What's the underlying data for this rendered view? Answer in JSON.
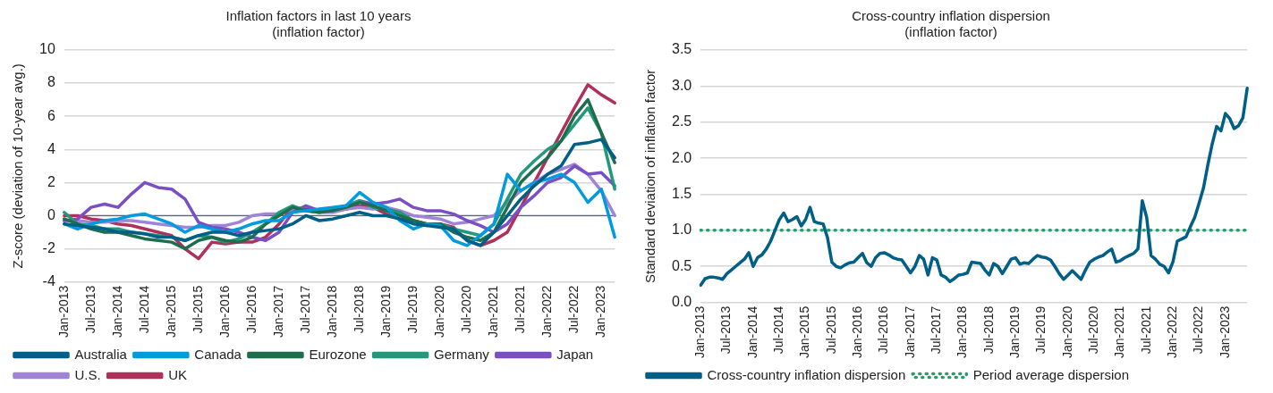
{
  "chart_data": [
    {
      "type": "line",
      "title": "Inflation factors in last 10 years",
      "subtitle": "(inflation factor)",
      "ylabel": "Z-score (deviation of 10-year avg.)",
      "categories": [
        "Jan-2013",
        null,
        "Jul-2013",
        null,
        "Jan-2014",
        null,
        "Jul-2014",
        null,
        "Jan-2015",
        null,
        "Jul-2015",
        null,
        "Jan-2016",
        null,
        "Jul-2016",
        null,
        "Jan-2017",
        null,
        "Jul-2017",
        null,
        "Jan-2018",
        null,
        "Jul-2018",
        null,
        "Jan-2019",
        null,
        "Jul-2019",
        null,
        "Jan-2020",
        null,
        "Jul-2020",
        null,
        "Jan-2021",
        null,
        "Jul-2021",
        null,
        "Jan-2022",
        null,
        "Jul-2022",
        null,
        "Jan-2023",
        null
      ],
      "series": [
        {
          "name": "Australia",
          "color": "#005f87",
          "values": [
            -0.5,
            -0.6,
            -0.7,
            -0.8,
            -1,
            -1,
            -1.1,
            -1.3,
            -1.3,
            -1.5,
            -1.2,
            -1,
            -1,
            -1.2,
            -1,
            -0.9,
            -0.8,
            -0.5,
            0,
            -0.3,
            -0.2,
            0,
            0.2,
            0,
            0,
            -0.2,
            -0.5,
            -0.6,
            -0.7,
            -0.8,
            -1.5,
            -1.8,
            -1,
            0,
            1,
            1.8,
            2.5,
            3,
            4.3,
            4.4,
            4.6,
            3.5
          ]
        },
        {
          "name": "Canada",
          "color": "#009bde",
          "values": [
            -0.5,
            -0.8,
            -0.5,
            -0.3,
            -0.2,
            0,
            0.1,
            -0.2,
            -0.5,
            -1,
            -0.6,
            -0.8,
            -1,
            -0.8,
            -0.5,
            -0.3,
            -0.3,
            0.2,
            0.3,
            0.4,
            0.5,
            0.6,
            1.4,
            0.8,
            0.5,
            -0.3,
            -0.8,
            -0.5,
            -0.6,
            -1.5,
            -1.8,
            -1.2,
            -0.5,
            2.5,
            1.5,
            2,
            2.2,
            2.5,
            2,
            0.8,
            1.6,
            -1.3
          ]
        },
        {
          "name": "Eurozone",
          "color": "#1e6e4e",
          "values": [
            -0.2,
            -0.5,
            -0.8,
            -1,
            -1,
            -1.2,
            -1.4,
            -1.5,
            -1.6,
            -2,
            -1.5,
            -1.3,
            -1.5,
            -1.6,
            -1.3,
            -0.5,
            0,
            0.5,
            0.3,
            0.2,
            0.3,
            0.5,
            0.8,
            0.6,
            0.3,
            0,
            -0.3,
            -0.5,
            -0.5,
            -1,
            -1.3,
            -1.5,
            -1,
            0.5,
            2,
            2.8,
            3.5,
            4.5,
            6,
            7,
            5,
            3.2
          ]
        },
        {
          "name": "Germany",
          "color": "#22997a",
          "values": [
            0.2,
            -0.5,
            -0.6,
            -0.8,
            -0.8,
            -1,
            -1.1,
            -1.2,
            -1.3,
            -1.5,
            -1.2,
            -1.3,
            -1.6,
            -1.4,
            -1,
            -0.5,
            0.2,
            0.6,
            0.3,
            0.2,
            0.4,
            0.6,
            0.9,
            0.5,
            0.4,
            0.2,
            -0.3,
            -0.6,
            -0.5,
            -0.8,
            -1,
            -1.2,
            -0.5,
            1,
            2.5,
            3.3,
            4,
            4.5,
            5.5,
            6.5,
            5,
            1.6
          ]
        },
        {
          "name": "Japan",
          "color": "#7b4fc4",
          "values": [
            -0.3,
            -0.2,
            0.5,
            0.7,
            0.5,
            1.3,
            2,
            1.7,
            1.6,
            1,
            -0.4,
            -0.7,
            -0.8,
            -1,
            -1.3,
            -1.5,
            -1,
            0.2,
            0.6,
            0.3,
            0.3,
            0.6,
            0.9,
            0.7,
            0.8,
            1,
            0.5,
            0.3,
            0.3,
            0.1,
            -0.3,
            -0.6,
            -1,
            -0.5,
            0.5,
            1.2,
            2,
            2.3,
            3,
            2.5,
            2.6,
            1.8
          ]
        },
        {
          "name": "U.S.",
          "color": "#a084d8",
          "values": [
            -0.3,
            -0.3,
            -0.4,
            -0.4,
            -0.3,
            -0.3,
            -0.4,
            -0.5,
            -0.6,
            -0.7,
            -0.7,
            -0.6,
            -0.6,
            -0.4,
            0,
            0.1,
            0.1,
            0.4,
            0.3,
            0.2,
            0.2,
            0.4,
            0.5,
            0.4,
            0.5,
            0.3,
            0,
            -0.1,
            -0.2,
            -0.5,
            -0.4,
            -0.2,
            0,
            0.8,
            1.5,
            2,
            2.5,
            2.8,
            3.1,
            2.5,
            1.5,
            0
          ]
        },
        {
          "name": "UK",
          "color": "#b0305c",
          "values": [
            0,
            0,
            -0.2,
            -0.3,
            -0.5,
            -0.6,
            -0.8,
            -1,
            -1.2,
            -2,
            -2.6,
            -1.6,
            -1.7,
            -1.6,
            -1.6,
            -1.3,
            -0.5,
            0.5,
            0.4,
            0.3,
            0.3,
            0.4,
            0.6,
            0.5,
            0.1,
            -0.2,
            -0.3,
            -0.5,
            -0.5,
            -0.7,
            -1.5,
            -1.8,
            -1.5,
            -1,
            0.5,
            2,
            3.5,
            5,
            6.5,
            7.9,
            7.3,
            6.8
          ]
        }
      ],
      "ylim": [
        -4,
        10
      ],
      "yticks": [
        -4,
        -2,
        0,
        2,
        4,
        6,
        8,
        10
      ],
      "grid": "y",
      "legend": "bottom",
      "ref_lines": [
        {
          "axis": "y",
          "value": 0,
          "color": "#5a6470",
          "line_style": "solid"
        }
      ]
    },
    {
      "type": "line",
      "title": "Cross-country inflation dispersion",
      "subtitle": "(inflation factor)",
      "ylabel": "Standard deviation of inflation factor",
      "categories": [
        "Jan-2013",
        null,
        null,
        null,
        null,
        null,
        "Jul-2013",
        null,
        null,
        null,
        null,
        null,
        "Jan-2014",
        null,
        null,
        null,
        null,
        null,
        "Jul-2014",
        null,
        null,
        null,
        null,
        null,
        "Jan-2015",
        null,
        null,
        null,
        null,
        null,
        "Jul-2015",
        null,
        null,
        null,
        null,
        null,
        "Jan-2016",
        null,
        null,
        null,
        null,
        null,
        "Jul-2016",
        null,
        null,
        null,
        null,
        null,
        "Jan-2017",
        null,
        null,
        null,
        null,
        null,
        "Jul-2017",
        null,
        null,
        null,
        null,
        null,
        "Jan-2018",
        null,
        null,
        null,
        null,
        null,
        "Jul-2018",
        null,
        null,
        null,
        null,
        null,
        "Jan-2019",
        null,
        null,
        null,
        null,
        null,
        "Jul-2019",
        null,
        null,
        null,
        null,
        null,
        "Jan-2020",
        null,
        null,
        null,
        null,
        null,
        "Jul-2020",
        null,
        null,
        null,
        null,
        null,
        "Jan-2021",
        null,
        null,
        null,
        null,
        null,
        "Jul-2021",
        null,
        null,
        null,
        null,
        null,
        "Jan-2022",
        null,
        null,
        null,
        null,
        null,
        "Jul-2022",
        null,
        null,
        null,
        null,
        null,
        "Jan-2023",
        null,
        null,
        null,
        null,
        null
      ],
      "series": [
        {
          "name": "Cross-country inflation dispersion",
          "color": "#005f87",
          "values": [
            0.24,
            0.33,
            0.35,
            0.35,
            0.34,
            0.32,
            0.4,
            0.45,
            0.5,
            0.55,
            0.6,
            0.69,
            0.5,
            0.62,
            0.66,
            0.74,
            0.85,
            1.0,
            1.15,
            1.24,
            1.12,
            1.15,
            1.19,
            1.06,
            1.15,
            1.32,
            1.12,
            1.1,
            1.09,
            0.9,
            0.56,
            0.5,
            0.48,
            0.52,
            0.55,
            0.56,
            0.62,
            0.68,
            0.55,
            0.5,
            0.62,
            0.68,
            0.69,
            0.66,
            0.62,
            0.6,
            0.59,
            0.5,
            0.41,
            0.5,
            0.65,
            0.6,
            0.38,
            0.62,
            0.59,
            0.38,
            0.35,
            0.29,
            0.33,
            0.38,
            0.39,
            0.41,
            0.56,
            0.55,
            0.54,
            0.45,
            0.38,
            0.54,
            0.5,
            0.4,
            0.5,
            0.6,
            0.62,
            0.53,
            0.55,
            0.54,
            0.6,
            0.65,
            0.63,
            0.62,
            0.59,
            0.5,
            0.4,
            0.32,
            0.38,
            0.44,
            0.38,
            0.32,
            0.45,
            0.56,
            0.6,
            0.63,
            0.65,
            0.7,
            0.74,
            0.56,
            0.58,
            0.62,
            0.65,
            0.68,
            0.74,
            1.41,
            1.18,
            0.65,
            0.6,
            0.53,
            0.5,
            0.41,
            0.56,
            0.85,
            0.88,
            0.91,
            1.05,
            1.18,
            1.38,
            1.59,
            1.91,
            2.2,
            2.44,
            2.38,
            2.62,
            2.55,
            2.41,
            2.45,
            2.56,
            2.97
          ]
        },
        {
          "name": "Period average dispersion",
          "color": "#22a06b",
          "line_style": "dotted",
          "values": [
            1,
            1,
            1,
            1,
            1,
            1,
            1,
            1,
            1,
            1,
            1,
            1,
            1,
            1,
            1,
            1,
            1,
            1,
            1,
            1,
            1,
            1,
            1,
            1,
            1,
            1,
            1,
            1,
            1,
            1,
            1,
            1,
            1,
            1,
            1,
            1,
            1,
            1,
            1,
            1,
            1,
            1,
            1,
            1,
            1,
            1,
            1,
            1,
            1,
            1,
            1,
            1,
            1,
            1,
            1,
            1,
            1,
            1,
            1,
            1,
            1,
            1,
            1,
            1,
            1,
            1,
            1,
            1,
            1,
            1,
            1,
            1,
            1,
            1,
            1,
            1,
            1,
            1,
            1,
            1,
            1,
            1,
            1,
            1,
            1,
            1,
            1,
            1,
            1,
            1,
            1,
            1,
            1,
            1,
            1,
            1,
            1,
            1,
            1,
            1,
            1,
            1,
            1,
            1,
            1,
            1,
            1,
            1,
            1,
            1,
            1,
            1,
            1,
            1,
            1,
            1,
            1,
            1,
            1,
            1,
            1,
            1,
            1,
            1,
            1,
            1
          ]
        }
      ],
      "ylim": [
        0,
        3.5
      ],
      "yticks": [
        {
          "value": 0,
          "label": "0.0"
        },
        0.5,
        {
          "value": 1,
          "label": "1.0"
        },
        1.5,
        {
          "value": 2,
          "label": "2.0"
        },
        2.5,
        {
          "value": 3,
          "label": "3.0"
        },
        3.5
      ],
      "grid": "y",
      "legend": "bottom"
    }
  ]
}
